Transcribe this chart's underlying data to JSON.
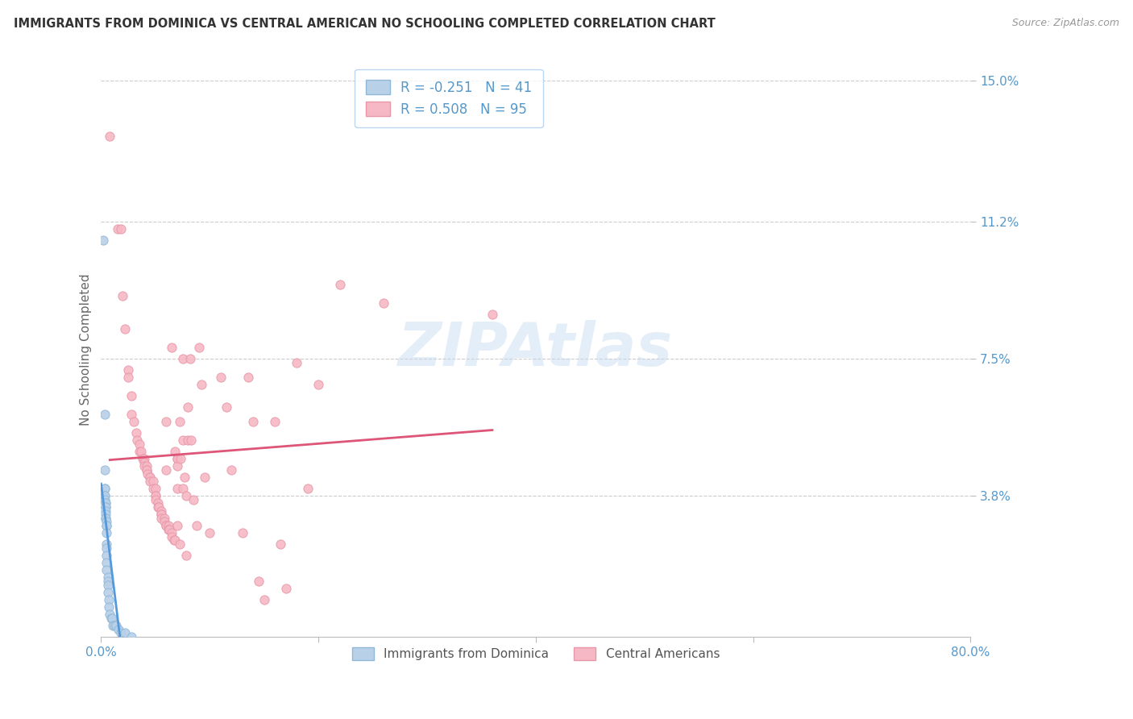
{
  "title": "IMMIGRANTS FROM DOMINICA VS CENTRAL AMERICAN NO SCHOOLING COMPLETED CORRELATION CHART",
  "source": "Source: ZipAtlas.com",
  "ylabel": "No Schooling Completed",
  "xlim": [
    0.0,
    0.8
  ],
  "ylim": [
    0.0,
    0.155
  ],
  "ytick_vals": [
    0.038,
    0.075,
    0.112,
    0.15
  ],
  "ytick_labels": [
    "3.8%",
    "7.5%",
    "11.2%",
    "15.0%"
  ],
  "xtick_vals": [
    0.0,
    0.2,
    0.4,
    0.6,
    0.8
  ],
  "xtick_labels": [
    "0.0%",
    "",
    "",
    "",
    "80.0%"
  ],
  "legend1_r": "-0.251",
  "legend1_n": "41",
  "legend2_r": "0.508",
  "legend2_n": "95",
  "blue_fill": "#b8d0e8",
  "blue_edge": "#90b8d8",
  "pink_fill": "#f5b8c4",
  "pink_edge": "#e898a8",
  "blue_line": "#5599dd",
  "pink_line": "#dd5577",
  "axis_color": "#5599cc",
  "watermark": "ZIPAtlas",
  "blue_scatter_x": [
    0.002,
    0.003,
    0.003,
    0.003,
    0.003,
    0.003,
    0.003,
    0.003,
    0.004,
    0.004,
    0.004,
    0.004,
    0.004,
    0.004,
    0.004,
    0.004,
    0.005,
    0.005,
    0.005,
    0.005,
    0.005,
    0.005,
    0.005,
    0.005,
    0.005,
    0.006,
    0.006,
    0.006,
    0.006,
    0.007,
    0.007,
    0.008,
    0.009,
    0.01,
    0.011,
    0.012,
    0.014,
    0.016,
    0.018,
    0.022,
    0.028
  ],
  "blue_scatter_y": [
    0.107,
    0.06,
    0.045,
    0.04,
    0.04,
    0.038,
    0.038,
    0.037,
    0.036,
    0.036,
    0.035,
    0.035,
    0.034,
    0.033,
    0.032,
    0.032,
    0.031,
    0.03,
    0.03,
    0.028,
    0.025,
    0.024,
    0.022,
    0.02,
    0.018,
    0.016,
    0.015,
    0.014,
    0.012,
    0.01,
    0.008,
    0.006,
    0.005,
    0.005,
    0.003,
    0.003,
    0.003,
    0.002,
    0.001,
    0.001,
    0.0
  ],
  "pink_scatter_x": [
    0.008,
    0.015,
    0.018,
    0.02,
    0.022,
    0.025,
    0.025,
    0.028,
    0.028,
    0.03,
    0.032,
    0.033,
    0.035,
    0.035,
    0.037,
    0.038,
    0.04,
    0.04,
    0.04,
    0.042,
    0.042,
    0.042,
    0.043,
    0.045,
    0.045,
    0.045,
    0.048,
    0.048,
    0.05,
    0.05,
    0.05,
    0.05,
    0.052,
    0.052,
    0.053,
    0.055,
    0.055,
    0.055,
    0.055,
    0.058,
    0.058,
    0.06,
    0.06,
    0.06,
    0.06,
    0.062,
    0.062,
    0.063,
    0.065,
    0.065,
    0.065,
    0.067,
    0.068,
    0.068,
    0.07,
    0.07,
    0.07,
    0.07,
    0.07,
    0.072,
    0.072,
    0.073,
    0.075,
    0.075,
    0.075,
    0.077,
    0.078,
    0.078,
    0.08,
    0.08,
    0.082,
    0.083,
    0.085,
    0.088,
    0.09,
    0.092,
    0.095,
    0.1,
    0.11,
    0.115,
    0.12,
    0.13,
    0.135,
    0.14,
    0.145,
    0.15,
    0.16,
    0.165,
    0.17,
    0.18,
    0.19,
    0.2,
    0.22,
    0.26,
    0.36
  ],
  "pink_scatter_y": [
    0.135,
    0.11,
    0.11,
    0.092,
    0.083,
    0.072,
    0.07,
    0.065,
    0.06,
    0.058,
    0.055,
    0.053,
    0.052,
    0.05,
    0.05,
    0.048,
    0.048,
    0.047,
    0.046,
    0.046,
    0.045,
    0.045,
    0.044,
    0.043,
    0.043,
    0.042,
    0.042,
    0.04,
    0.04,
    0.038,
    0.038,
    0.037,
    0.036,
    0.035,
    0.035,
    0.034,
    0.033,
    0.033,
    0.032,
    0.032,
    0.031,
    0.03,
    0.03,
    0.058,
    0.045,
    0.03,
    0.029,
    0.029,
    0.028,
    0.078,
    0.027,
    0.026,
    0.05,
    0.026,
    0.048,
    0.048,
    0.046,
    0.04,
    0.03,
    0.025,
    0.058,
    0.048,
    0.04,
    0.075,
    0.053,
    0.043,
    0.038,
    0.022,
    0.062,
    0.053,
    0.075,
    0.053,
    0.037,
    0.03,
    0.078,
    0.068,
    0.043,
    0.028,
    0.07,
    0.062,
    0.045,
    0.028,
    0.07,
    0.058,
    0.015,
    0.01,
    0.058,
    0.025,
    0.013,
    0.074,
    0.04,
    0.068,
    0.095,
    0.09,
    0.087
  ]
}
